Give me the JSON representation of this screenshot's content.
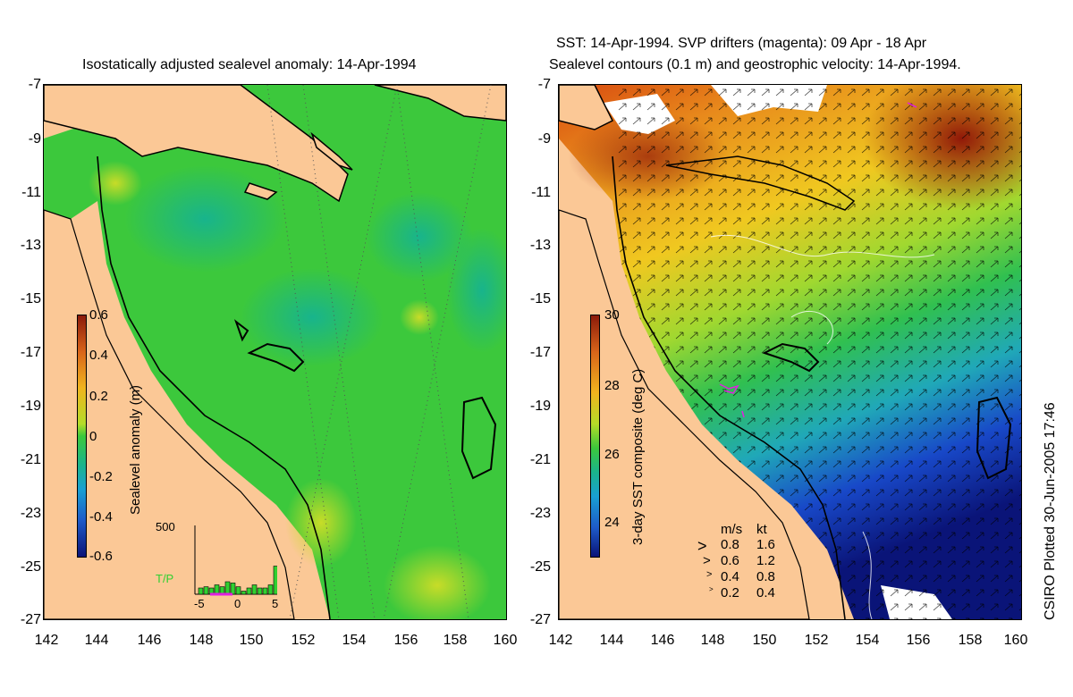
{
  "left_panel": {
    "title": "Isostatically adjusted sealevel anomaly: 14-Apr-1994",
    "colorbar": {
      "label": "Sealevel anomaly (m)",
      "ticks": [
        "0.6",
        "0.4",
        "0.2",
        "0",
        "-0.2",
        "-0.4",
        "-0.6"
      ]
    },
    "histogram": {
      "ymax_label": "500",
      "xticks": [
        "-5",
        "0",
        "5"
      ],
      "satellite_label": "T/P",
      "bars": [
        0.1,
        0.12,
        0.1,
        0.15,
        0.12,
        0.2,
        0.18,
        0.12,
        0.05,
        0.1,
        0.15,
        0.1,
        0.1,
        0.15,
        0.45
      ]
    }
  },
  "right_panel": {
    "title_line1": "SST: 14-Apr-1994. SVP drifters (magenta): 09 Apr - 18 Apr",
    "title_line2": "Sealevel contours (0.1 m) and geostrophic velocity: 14-Apr-1994.",
    "colorbar": {
      "label": "3-day SST composite (deg C)",
      "ticks": [
        "30",
        "28",
        "26",
        "24"
      ]
    },
    "velocity_legend": {
      "header_ms": "m/s",
      "header_kt": "kt",
      "rows": [
        {
          "ms": "0.8",
          "kt": "1.6"
        },
        {
          "ms": "0.6",
          "kt": "1.2"
        },
        {
          "ms": "0.4",
          "kt": "0.8"
        },
        {
          "ms": "0.2",
          "kt": "0.4"
        }
      ]
    }
  },
  "axes": {
    "lat_ticks": [
      "-7",
      "-9",
      "-11",
      "-13",
      "-15",
      "-17",
      "-19",
      "-21",
      "-23",
      "-25",
      "-27"
    ],
    "lon_ticks": [
      "142",
      "144",
      "146",
      "148",
      "150",
      "152",
      "154",
      "156",
      "158",
      "160"
    ]
  },
  "credit": "CSIRO Plotted 30-Jun-2005 17:46",
  "colors": {
    "land": "#FBC896",
    "ocean_base": "#3CC83C",
    "drifter": "#E020E0",
    "satellite_label": "#30D030"
  }
}
